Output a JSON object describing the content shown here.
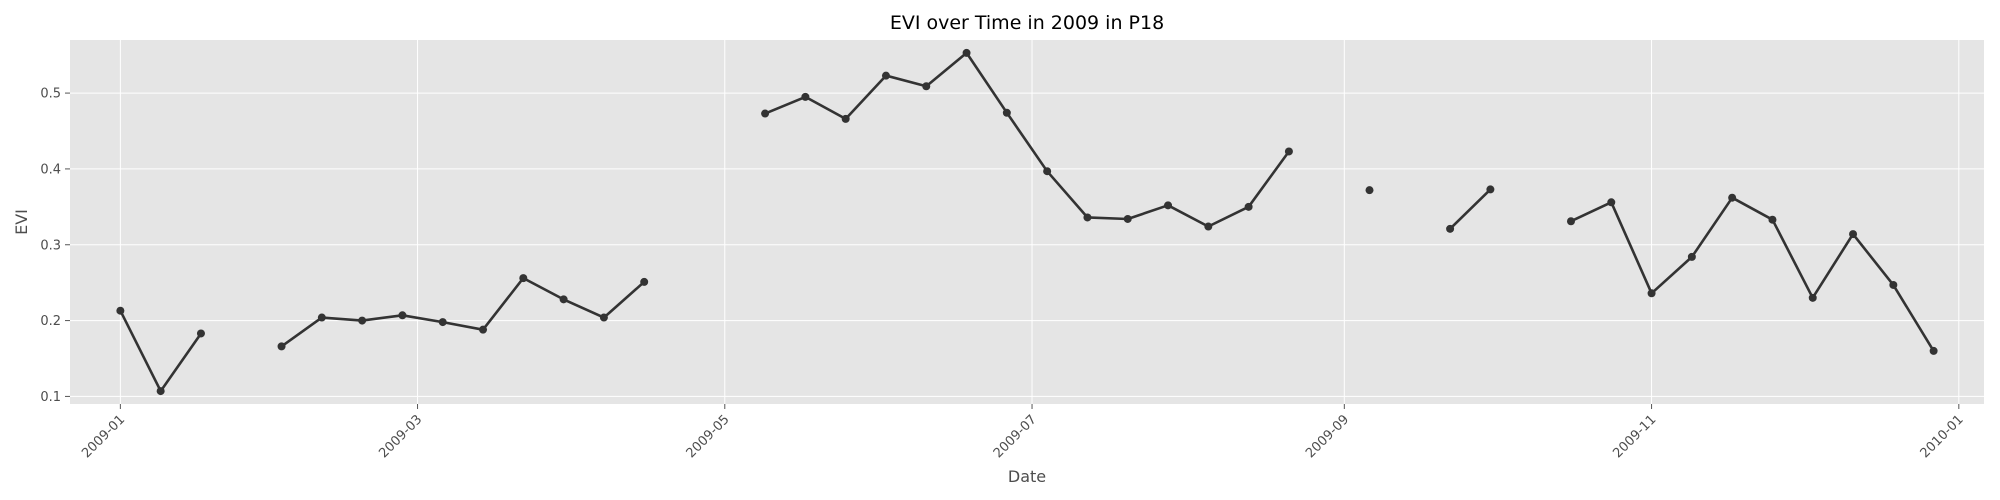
{
  "chart_data": {
    "type": "line",
    "title": "EVI over Time in 2009 in P18",
    "xlabel": "Date",
    "ylabel": "EVI",
    "x_ticks": [
      "2009-01",
      "2009-03",
      "2009-05",
      "2009-07",
      "2009-09",
      "2009-11",
      "2010-01"
    ],
    "y_ticks": [
      0.1,
      0.2,
      0.3,
      0.4,
      0.5
    ],
    "xlim": [
      "2008-12-22",
      "2010-01-06"
    ],
    "ylim": [
      0.09,
      0.57
    ],
    "grid": true,
    "style": "ggplot",
    "colors": {
      "line": "#333333",
      "marker": "#333333",
      "panel": "#e5e5e5",
      "grid": "#ffffff"
    },
    "series": [
      {
        "points": [
          [
            "2009-01-01",
            0.213
          ],
          [
            "2009-01-09",
            0.107
          ],
          [
            "2009-01-17",
            0.183
          ],
          [
            "2009-01-25",
            null
          ],
          [
            "2009-02-02",
            0.166
          ],
          [
            "2009-02-10",
            0.204
          ],
          [
            "2009-02-18",
            0.2
          ],
          [
            "2009-02-26",
            0.207
          ],
          [
            "2009-03-06",
            0.198
          ],
          [
            "2009-03-14",
            0.188
          ],
          [
            "2009-03-22",
            0.256
          ],
          [
            "2009-03-30",
            0.228
          ],
          [
            "2009-04-07",
            0.204
          ],
          [
            "2009-04-15",
            0.251
          ],
          [
            "2009-04-23",
            null
          ],
          [
            "2009-05-01",
            null
          ],
          [
            "2009-05-09",
            0.473
          ],
          [
            "2009-05-17",
            0.495
          ],
          [
            "2009-05-25",
            0.466
          ],
          [
            "2009-06-02",
            0.523
          ],
          [
            "2009-06-10",
            0.509
          ],
          [
            "2009-06-18",
            0.553
          ],
          [
            "2009-06-26",
            0.474
          ],
          [
            "2009-07-04",
            0.397
          ],
          [
            "2009-07-12",
            0.336
          ],
          [
            "2009-07-20",
            0.334
          ],
          [
            "2009-07-28",
            0.352
          ],
          [
            "2009-08-05",
            0.324
          ],
          [
            "2009-08-13",
            0.35
          ],
          [
            "2009-08-21",
            0.423
          ],
          [
            "2009-08-29",
            null
          ],
          [
            "2009-09-06",
            0.372
          ],
          [
            "2009-09-14",
            null
          ],
          [
            "2009-09-22",
            0.321
          ],
          [
            "2009-09-30",
            0.373
          ],
          [
            "2009-10-08",
            null
          ],
          [
            "2009-10-16",
            0.331
          ],
          [
            "2009-10-24",
            0.356
          ],
          [
            "2009-11-01",
            0.236
          ],
          [
            "2009-11-09",
            0.284
          ],
          [
            "2009-11-17",
            0.362
          ],
          [
            "2009-11-25",
            0.333
          ],
          [
            "2009-12-03",
            0.23
          ],
          [
            "2009-12-11",
            0.314
          ],
          [
            "2009-12-19",
            0.247
          ],
          [
            "2009-12-27",
            0.16
          ]
        ]
      }
    ]
  }
}
